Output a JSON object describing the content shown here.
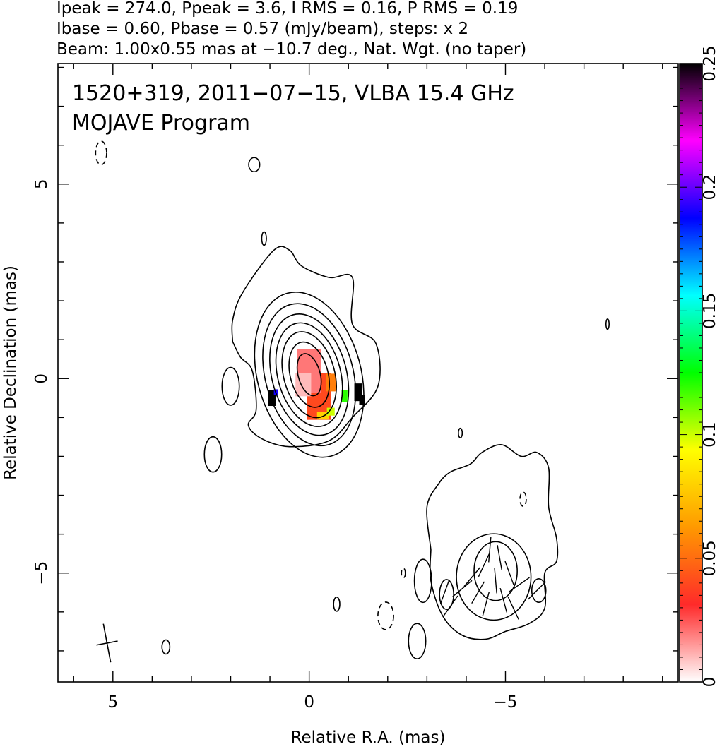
{
  "header": {
    "line1": "Ipeak = 274.0, Ppeak = 3.6, I RMS = 0.16, P RMS = 0.19",
    "line2": "Ibase = 0.60, Pbase = 0.57 (mJy/beam), steps: x 2",
    "line3": "Beam: 1.00x0.55 mas at −10.7 deg., Nat. Wgt. (no taper)"
  },
  "plot_labels": {
    "source": "1520+319, 2011−07−15, VLBA 15.4 GHz",
    "program": "MOJAVE Program"
  },
  "chart_data": {
    "type": "heatmap",
    "title": "",
    "xlabel": "Relative R.A. (mas)",
    "ylabel": "Relative Declination (mas)",
    "xlim": [
      6.4,
      -9.4
    ],
    "ylim": [
      -7.8,
      8.1
    ],
    "x_ticks": [
      {
        "value": 5,
        "label": "5"
      },
      {
        "value": 0,
        "label": "0"
      },
      {
        "value": -5,
        "label": "−5"
      }
    ],
    "y_ticks": [
      {
        "value": 5,
        "label": "5"
      },
      {
        "value": 0,
        "label": "0"
      },
      {
        "value": -5,
        "label": "−5"
      }
    ],
    "colorbar": {
      "range": [
        0,
        0.25
      ],
      "ticks": [
        {
          "value": 0,
          "label": "0"
        },
        {
          "value": 0.05,
          "label": "0.05"
        },
        {
          "value": 0.1,
          "label": "0.1"
        },
        {
          "value": 0.15,
          "label": "0.15"
        },
        {
          "value": 0.2,
          "label": "0.2"
        },
        {
          "value": 0.25,
          "label": "0.25"
        }
      ],
      "colors": [
        "#ffffff",
        "#ff2a2a",
        "#ff9900",
        "#ffff00",
        "#00ff00",
        "#00ffff",
        "#0000ff",
        "#ff00ff",
        "#000000"
      ]
    },
    "contour_groups": [
      {
        "name": "core",
        "center": [
          0.0,
          0.1
        ],
        "rotation_deg": -15,
        "levels": [
          {
            "rx": 0.28,
            "ry": 0.55
          },
          {
            "rx": 0.48,
            "ry": 0.85
          },
          {
            "rx": 0.65,
            "ry": 1.12
          },
          {
            "rx": 0.8,
            "ry": 1.35
          },
          {
            "rx": 0.95,
            "ry": 1.58
          },
          {
            "rx": 1.12,
            "ry": 1.85
          },
          {
            "rx": 1.32,
            "ry": 2.15
          }
        ],
        "outer_path": [
          [
            1.95,
            0.95
          ],
          [
            1.95,
            1.5
          ],
          [
            1.7,
            2.2
          ],
          [
            0.9,
            3.3
          ],
          [
            0.5,
            3.3
          ],
          [
            0.2,
            2.9
          ],
          [
            -0.5,
            2.6
          ],
          [
            -1.1,
            2.6
          ],
          [
            -1.1,
            1.4
          ],
          [
            -1.7,
            0.9
          ],
          [
            -1.75,
            -0.2
          ],
          [
            -1.1,
            -1.0
          ],
          [
            -0.5,
            -1.6
          ],
          [
            0.5,
            -1.75
          ],
          [
            1.2,
            -1.55
          ],
          [
            1.55,
            -1.2
          ],
          [
            1.35,
            -0.8
          ],
          [
            1.45,
            0.2
          ],
          [
            1.75,
            0.55
          ],
          [
            1.95,
            0.95
          ]
        ]
      },
      {
        "name": "jet",
        "outer_path": [
          [
            -3.1,
            -4.4
          ],
          [
            -3.0,
            -3.3
          ],
          [
            -3.3,
            -2.7
          ],
          [
            -3.6,
            -2.4
          ],
          [
            -4.1,
            -2.2
          ],
          [
            -4.4,
            -1.9
          ],
          [
            -4.9,
            -1.7
          ],
          [
            -5.4,
            -2.0
          ],
          [
            -5.8,
            -1.9
          ],
          [
            -6.1,
            -2.3
          ],
          [
            -6.1,
            -3.3
          ],
          [
            -6.3,
            -4.1
          ],
          [
            -6.3,
            -4.7
          ],
          [
            -6.0,
            -5.0
          ],
          [
            -6.0,
            -5.9
          ],
          [
            -5.6,
            -6.3
          ],
          [
            -5.0,
            -6.5
          ],
          [
            -4.5,
            -6.7
          ],
          [
            -3.9,
            -6.6
          ],
          [
            -3.4,
            -6.1
          ],
          [
            -3.1,
            -5.2
          ],
          [
            -3.1,
            -4.4
          ]
        ],
        "inner_levels": [
          {
            "cx": -4.7,
            "cy": -5.1,
            "rx": 0.95,
            "ry": 1.1
          },
          {
            "cx": -4.75,
            "cy": -4.95,
            "rx": 0.55,
            "ry": 0.75
          }
        ],
        "side_blobs": [
          {
            "cx": -3.5,
            "cy": -5.55,
            "rx": 0.18,
            "ry": 0.38
          },
          {
            "cx": -5.85,
            "cy": -5.45,
            "rx": 0.18,
            "ry": 0.3
          }
        ]
      }
    ],
    "isolated_contours": [
      {
        "cx": 5.3,
        "cy": 5.8,
        "rx": 0.14,
        "ry": 0.3,
        "negative": true
      },
      {
        "cx": 1.4,
        "cy": 5.5,
        "rx": 0.14,
        "ry": 0.18,
        "negative": false
      },
      {
        "cx": 1.15,
        "cy": 3.6,
        "rx": 0.06,
        "ry": 0.17,
        "negative": false
      },
      {
        "cx": 2.0,
        "cy": -0.2,
        "rx": 0.22,
        "ry": 0.48,
        "negative": false
      },
      {
        "cx": 2.45,
        "cy": -1.95,
        "rx": 0.22,
        "ry": 0.45,
        "negative": false
      },
      {
        "cx": 3.65,
        "cy": -6.9,
        "rx": 0.1,
        "ry": 0.18,
        "negative": false
      },
      {
        "cx": -0.7,
        "cy": -5.8,
        "rx": 0.08,
        "ry": 0.18,
        "negative": false
      },
      {
        "cx": -1.95,
        "cy": -6.1,
        "rx": 0.2,
        "ry": 0.35,
        "negative": true
      },
      {
        "cx": -2.4,
        "cy": -5.0,
        "rx": 0.05,
        "ry": 0.12,
        "negative": true
      },
      {
        "cx": -2.9,
        "cy": -5.2,
        "rx": 0.22,
        "ry": 0.55,
        "negative": false
      },
      {
        "cx": -2.75,
        "cy": -6.75,
        "rx": 0.22,
        "ry": 0.45,
        "negative": false
      },
      {
        "cx": -3.85,
        "cy": -1.4,
        "rx": 0.05,
        "ry": 0.12,
        "negative": false
      },
      {
        "cx": -5.45,
        "cy": -3.1,
        "rx": 0.08,
        "ry": 0.18,
        "negative": true
      },
      {
        "cx": -7.6,
        "cy": 1.4,
        "rx": 0.04,
        "ry": 0.13,
        "negative": false
      }
    ],
    "polarization_pixels": [
      {
        "x": -0.25,
        "y": -0.45,
        "w": 0.6,
        "h": 1.2,
        "value": 0.04
      },
      {
        "x": 0.0,
        "y": 0.2,
        "w": 0.6,
        "h": 1.1,
        "value": 0.02
      },
      {
        "x": 0.15,
        "y": -0.15,
        "w": 0.4,
        "h": 0.6,
        "value": 0.01
      },
      {
        "x": -0.55,
        "y": -0.1,
        "w": 0.25,
        "h": 0.45,
        "value": 0.055
      },
      {
        "x": -0.35,
        "y": -0.95,
        "w": 0.3,
        "h": 0.2,
        "value": 0.08
      },
      {
        "x": -0.55,
        "y": -0.85,
        "w": 0.2,
        "h": 0.2,
        "value": 0.1
      },
      {
        "x": -0.9,
        "y": -0.45,
        "w": 0.15,
        "h": 0.3,
        "value": 0.12
      },
      {
        "x": -1.25,
        "y": -0.35,
        "w": 0.2,
        "h": 0.45,
        "value": 0.25
      },
      {
        "x": -1.35,
        "y": -0.55,
        "w": 0.15,
        "h": 0.25,
        "value": 0.25
      },
      {
        "x": 0.95,
        "y": -0.5,
        "w": 0.2,
        "h": 0.4,
        "value": 0.25
      },
      {
        "x": 0.85,
        "y": -0.35,
        "w": 0.1,
        "h": 0.15,
        "value": 0.19
      }
    ],
    "evpa_vectors": [
      {
        "x": -3.45,
        "y": -5.5,
        "angle_deg": 20
      },
      {
        "x": -3.6,
        "y": -5.85,
        "angle_deg": 35
      },
      {
        "x": -3.9,
        "y": -5.4,
        "angle_deg": 50
      },
      {
        "x": -4.15,
        "y": -5.1,
        "angle_deg": 40
      },
      {
        "x": -4.3,
        "y": -5.5,
        "angle_deg": 30
      },
      {
        "x": -4.45,
        "y": -4.8,
        "angle_deg": 25
      },
      {
        "x": -4.5,
        "y": -5.8,
        "angle_deg": 15
      },
      {
        "x": -4.6,
        "y": -4.4,
        "angle_deg": 5
      },
      {
        "x": -4.75,
        "y": -5.2,
        "angle_deg": -5
      },
      {
        "x": -4.85,
        "y": -4.6,
        "angle_deg": -10
      },
      {
        "x": -4.95,
        "y": -5.7,
        "angle_deg": -15
      },
      {
        "x": -5.1,
        "y": -5.0,
        "angle_deg": -20
      },
      {
        "x": -5.2,
        "y": -5.9,
        "angle_deg": -25
      },
      {
        "x": -5.35,
        "y": -5.3,
        "angle_deg": 55
      },
      {
        "x": -5.8,
        "y": -5.45,
        "angle_deg": 45
      }
    ],
    "beam": {
      "x": 5.15,
      "y": -6.8,
      "major_mas": 1.0,
      "minor_mas": 0.55,
      "pa_deg": -10.7
    }
  }
}
